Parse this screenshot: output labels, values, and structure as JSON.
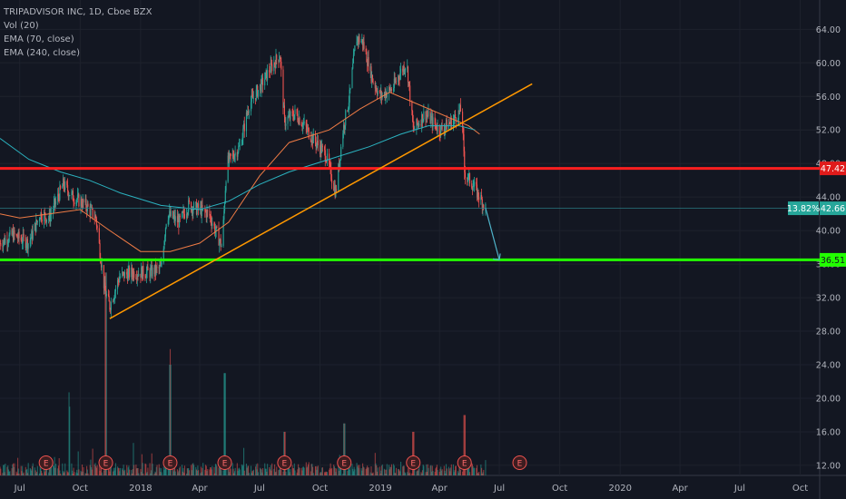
{
  "legend": {
    "symbol": "TRIPADVISOR INC, 1D, Cboe BZX",
    "volume": "Vol (20)",
    "ema1": "EMA (70, close)",
    "ema2": "EMA (240, close)"
  },
  "colors": {
    "background": "#131722",
    "up": "#26a69a",
    "down": "#ef5350",
    "ema70": "#ef7b45",
    "ema240": "#2bb3c0",
    "resistance": "#ff1f1f",
    "support": "#22ff00",
    "trendline": "#ff9800",
    "projection": "#4fb3c9",
    "axis_text": "#b2b5be"
  },
  "chart_data": {
    "type": "candlestick",
    "title": "TRIPADVISOR INC, 1D, Cboe BZX",
    "ylim": [
      10.8,
      67.5
    ],
    "y_ticks": [
      64,
      60,
      56,
      52,
      48,
      44,
      40,
      36,
      32,
      28,
      24,
      20,
      16,
      12
    ],
    "x_range": [
      "2017-06-01",
      "2020-11-01"
    ],
    "x_ticks": [
      {
        "label": "Jul",
        "date": "2017-07-01"
      },
      {
        "label": "Oct",
        "date": "2017-10-01"
      },
      {
        "label": "2018",
        "date": "2018-01-01"
      },
      {
        "label": "Apr",
        "date": "2018-04-01"
      },
      {
        "label": "Jul",
        "date": "2018-07-01"
      },
      {
        "label": "Oct",
        "date": "2018-10-01"
      },
      {
        "label": "2019",
        "date": "2019-01-01"
      },
      {
        "label": "Apr",
        "date": "2019-04-01"
      },
      {
        "label": "Jul",
        "date": "2019-07-01"
      },
      {
        "label": "Oct",
        "date": "2019-10-01"
      },
      {
        "label": "2020",
        "date": "2020-01-01"
      },
      {
        "label": "Apr",
        "date": "2020-04-01"
      },
      {
        "label": "Jul",
        "date": "2020-07-01"
      },
      {
        "label": "Oct",
        "date": "2020-10-01"
      }
    ],
    "price_path": [
      [
        "2017-06-01",
        38.5
      ],
      [
        "2017-06-20",
        39.5
      ],
      [
        "2017-07-15",
        38.5
      ],
      [
        "2017-08-01",
        42
      ],
      [
        "2017-08-15",
        41.5
      ],
      [
        "2017-09-05",
        45.5
      ],
      [
        "2017-09-20",
        44
      ],
      [
        "2017-10-10",
        43
      ],
      [
        "2017-10-25",
        41.5
      ],
      [
        "2017-11-07",
        33
      ],
      [
        "2017-11-15",
        31
      ],
      [
        "2017-11-30",
        34.5
      ],
      [
        "2017-12-20",
        35
      ],
      [
        "2018-01-15",
        35
      ],
      [
        "2018-02-01",
        35.5
      ],
      [
        "2018-02-10",
        42
      ],
      [
        "2018-03-01",
        41
      ],
      [
        "2018-03-15",
        43
      ],
      [
        "2018-04-15",
        42
      ],
      [
        "2018-05-05",
        38
      ],
      [
        "2018-05-12",
        48
      ],
      [
        "2018-06-01",
        50
      ],
      [
        "2018-06-15",
        55
      ],
      [
        "2018-07-01",
        57
      ],
      [
        "2018-07-15",
        59
      ],
      [
        "2018-08-01",
        61
      ],
      [
        "2018-08-08",
        53
      ],
      [
        "2018-08-25",
        54
      ],
      [
        "2018-09-20",
        51
      ],
      [
        "2018-10-10",
        49
      ],
      [
        "2018-10-25",
        44.5
      ],
      [
        "2018-11-05",
        52
      ],
      [
        "2018-11-15",
        56
      ],
      [
        "2018-11-25",
        63
      ],
      [
        "2018-12-05",
        62.5
      ],
      [
        "2018-12-20",
        58
      ],
      [
        "2019-01-01",
        56
      ],
      [
        "2019-01-20",
        57
      ],
      [
        "2019-02-01",
        59
      ],
      [
        "2019-02-10",
        60
      ],
      [
        "2019-02-20",
        52
      ],
      [
        "2019-03-10",
        54
      ],
      [
        "2019-04-01",
        52
      ],
      [
        "2019-04-20",
        53
      ],
      [
        "2019-05-05",
        54.5
      ],
      [
        "2019-05-09",
        47
      ],
      [
        "2019-05-25",
        45
      ],
      [
        "2019-06-10",
        42.7
      ]
    ],
    "series": [
      {
        "name": "EMA (70, close)",
        "values": [
          [
            "2017-06-01",
            42
          ],
          [
            "2017-07-01",
            41.5
          ],
          [
            "2017-08-15",
            42
          ],
          [
            "2017-10-01",
            42.5
          ],
          [
            "2017-11-15",
            40
          ],
          [
            "2018-01-01",
            37.5
          ],
          [
            "2018-02-15",
            37.5
          ],
          [
            "2018-04-01",
            38.5
          ],
          [
            "2018-05-15",
            41
          ],
          [
            "2018-07-01",
            46.5
          ],
          [
            "2018-08-15",
            50.5
          ],
          [
            "2018-10-15",
            52
          ],
          [
            "2018-12-01",
            54.5
          ],
          [
            "2019-01-15",
            56.5
          ],
          [
            "2019-03-01",
            55
          ],
          [
            "2019-04-15",
            53.5
          ],
          [
            "2019-05-15",
            52.5
          ],
          [
            "2019-06-01",
            51.5
          ]
        ]
      },
      {
        "name": "EMA (240, close)",
        "values": [
          [
            "2017-06-01",
            51
          ],
          [
            "2017-07-15",
            48.5
          ],
          [
            "2017-09-01",
            47
          ],
          [
            "2017-10-15",
            46
          ],
          [
            "2017-12-01",
            44.5
          ],
          [
            "2018-02-01",
            43
          ],
          [
            "2018-04-01",
            42.5
          ],
          [
            "2018-05-15",
            43.5
          ],
          [
            "2018-07-01",
            45.5
          ],
          [
            "2018-08-15",
            47
          ],
          [
            "2018-10-15",
            48.5
          ],
          [
            "2018-12-15",
            50
          ],
          [
            "2019-02-01",
            51.5
          ],
          [
            "2019-03-15",
            52.5
          ],
          [
            "2019-05-01",
            52.5
          ],
          [
            "2019-05-25",
            52
          ]
        ]
      }
    ],
    "horizontal_lines": [
      {
        "value": 47.42,
        "label": "47.42"
      },
      {
        "value": 36.51,
        "label": "36.51"
      },
      {
        "value": 42.66,
        "label": "42.66"
      }
    ],
    "trendline": {
      "from": [
        "2017-11-15",
        29.5
      ],
      "to": [
        "2019-08-20",
        57.5
      ]
    },
    "projection": {
      "from": [
        "2019-06-10",
        42.7
      ],
      "to": [
        "2019-07-01",
        36.51
      ]
    },
    "percent_label": "13.82%",
    "last_price": "42.66",
    "earnings_markers": {
      "label": "E",
      "dates": [
        "2017-08-10",
        "2017-11-09",
        "2018-02-15",
        "2018-05-09",
        "2018-08-08",
        "2018-11-07",
        "2019-02-20",
        "2019-05-09",
        "2019-08-01"
      ]
    },
    "volume_spikes": [
      [
        "2017-09-15",
        8
      ],
      [
        "2017-11-09",
        24
      ],
      [
        "2018-02-15",
        13
      ],
      [
        "2018-05-09",
        12
      ],
      [
        "2018-08-08",
        5
      ],
      [
        "2018-11-07",
        6
      ],
      [
        "2019-02-20",
        5
      ],
      [
        "2019-05-09",
        7
      ]
    ]
  }
}
